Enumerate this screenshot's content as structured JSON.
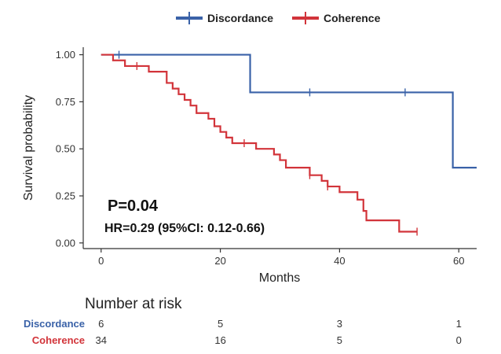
{
  "chart_data": {
    "type": "line",
    "subtype": "kaplan-meier",
    "title": "",
    "xlabel": "Months",
    "ylabel": "Survival probability",
    "xlim": [
      -3,
      63
    ],
    "ylim": [
      -0.03,
      1.04
    ],
    "x_ticks": [
      0,
      20,
      40,
      60
    ],
    "y_ticks": [
      0.0,
      0.25,
      0.5,
      0.75,
      1.0
    ],
    "y_tick_labels": [
      "0.00",
      "0.25",
      "0.50",
      "0.75",
      "1.00"
    ],
    "legend": "top",
    "series": [
      {
        "name": "Discordance",
        "color": "#3a62a8",
        "steps": [
          [
            0,
            1.0
          ],
          [
            25,
            0.8
          ],
          [
            59,
            0.4
          ]
        ],
        "end_x": 63,
        "censor_marks": [
          [
            3,
            1.0
          ],
          [
            35,
            0.8
          ],
          [
            51,
            0.8
          ]
        ]
      },
      {
        "name": "Coherence",
        "color": "#d2343a",
        "steps": [
          [
            0,
            1.0
          ],
          [
            2,
            0.97
          ],
          [
            4,
            0.94
          ],
          [
            8,
            0.91
          ],
          [
            11,
            0.85
          ],
          [
            12,
            0.82
          ],
          [
            13,
            0.79
          ],
          [
            14,
            0.76
          ],
          [
            15,
            0.73
          ],
          [
            16,
            0.69
          ],
          [
            18,
            0.66
          ],
          [
            19,
            0.62
          ],
          [
            20,
            0.59
          ],
          [
            21,
            0.56
          ],
          [
            22,
            0.53
          ],
          [
            26,
            0.5
          ],
          [
            29,
            0.47
          ],
          [
            30,
            0.44
          ],
          [
            31,
            0.4
          ],
          [
            35,
            0.36
          ],
          [
            37,
            0.33
          ],
          [
            38,
            0.3
          ],
          [
            40,
            0.27
          ],
          [
            43,
            0.23
          ],
          [
            44,
            0.17
          ],
          [
            44.5,
            0.12
          ],
          [
            50,
            0.06
          ]
        ],
        "end_x": 53,
        "censor_marks": [
          [
            6,
            0.94
          ],
          [
            24,
            0.53
          ],
          [
            35,
            0.36
          ],
          [
            38,
            0.3
          ],
          [
            53,
            0.06
          ]
        ]
      }
    ],
    "annotations": {
      "p_value": "P=0.04",
      "hr": "HR=0.29 (95%CI:  0.12-0.66)"
    },
    "risk_table": {
      "title": "Number at risk",
      "times": [
        0,
        20,
        40,
        60
      ],
      "rows": [
        {
          "name": "Discordance",
          "color": "#3a62a8",
          "values": [
            "6",
            "5",
            "3",
            "1"
          ]
        },
        {
          "name": "Coherence",
          "color": "#d2343a",
          "values": [
            "34",
            "16",
            "5",
            "0"
          ]
        }
      ]
    }
  }
}
